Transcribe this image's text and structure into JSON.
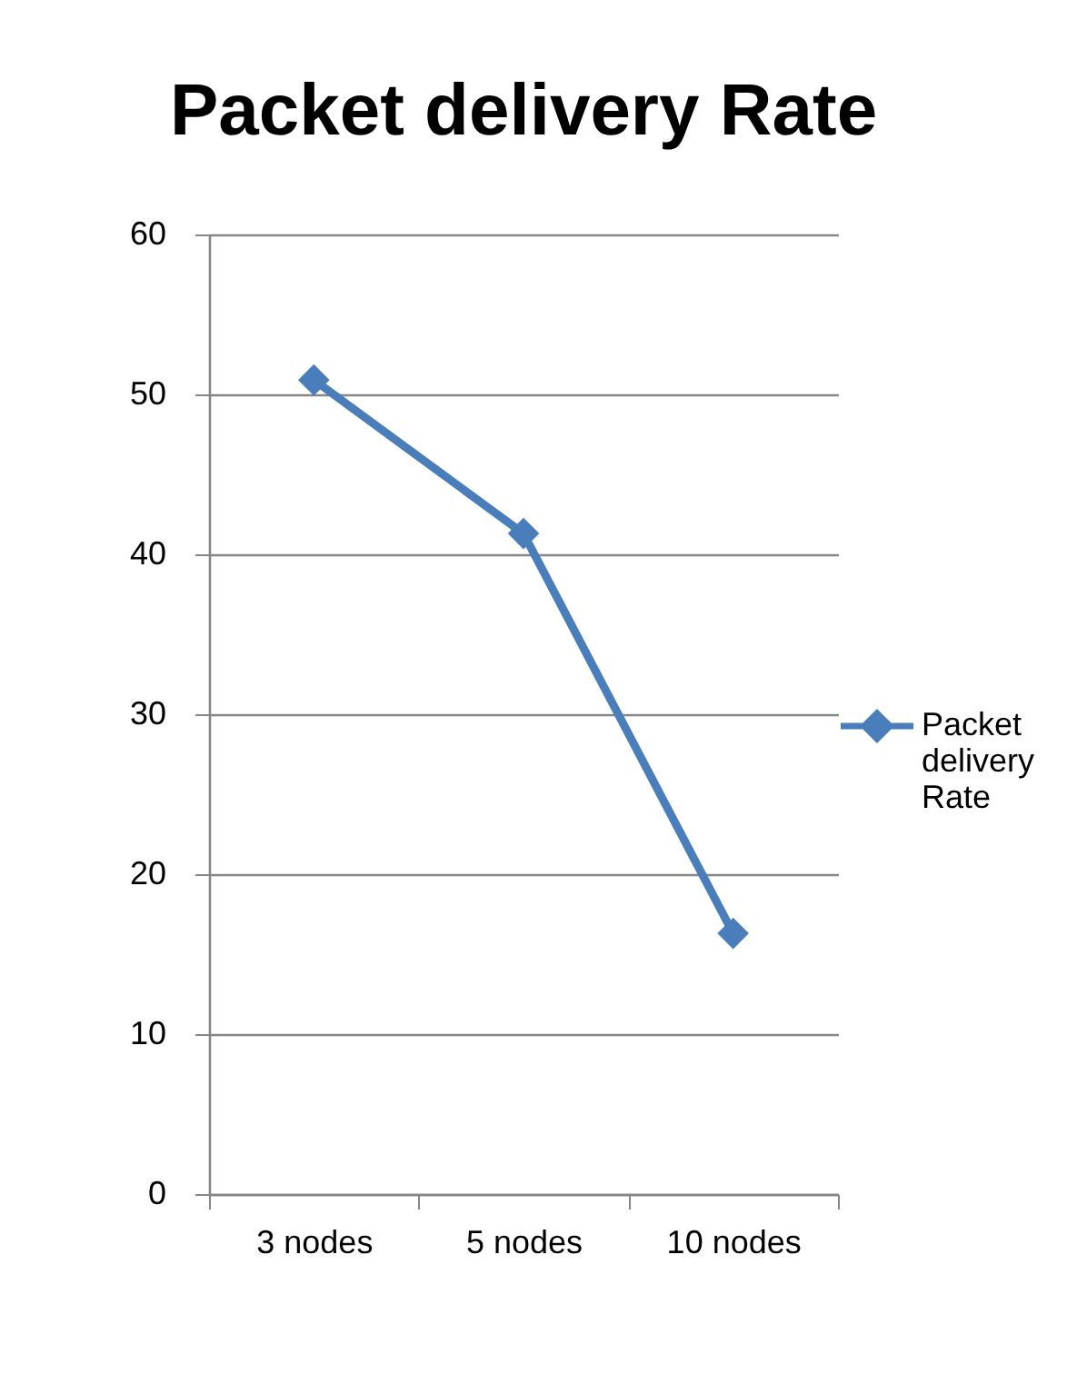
{
  "chart_data": {
    "type": "line",
    "title": "Packet delivery  Rate",
    "categories": [
      "3 nodes",
      "5 nodes",
      "10 nodes"
    ],
    "series": [
      {
        "name": "Packet delivery Rate",
        "color": "#4a7ebb",
        "values": [
          50.9,
          41.3,
          16.3
        ]
      }
    ],
    "ylim": [
      0,
      60
    ],
    "yticks": [
      0,
      10,
      20,
      30,
      40,
      50,
      60
    ],
    "grid": "y",
    "legend": "right",
    "marker": "diamond",
    "line_style": "solid"
  }
}
